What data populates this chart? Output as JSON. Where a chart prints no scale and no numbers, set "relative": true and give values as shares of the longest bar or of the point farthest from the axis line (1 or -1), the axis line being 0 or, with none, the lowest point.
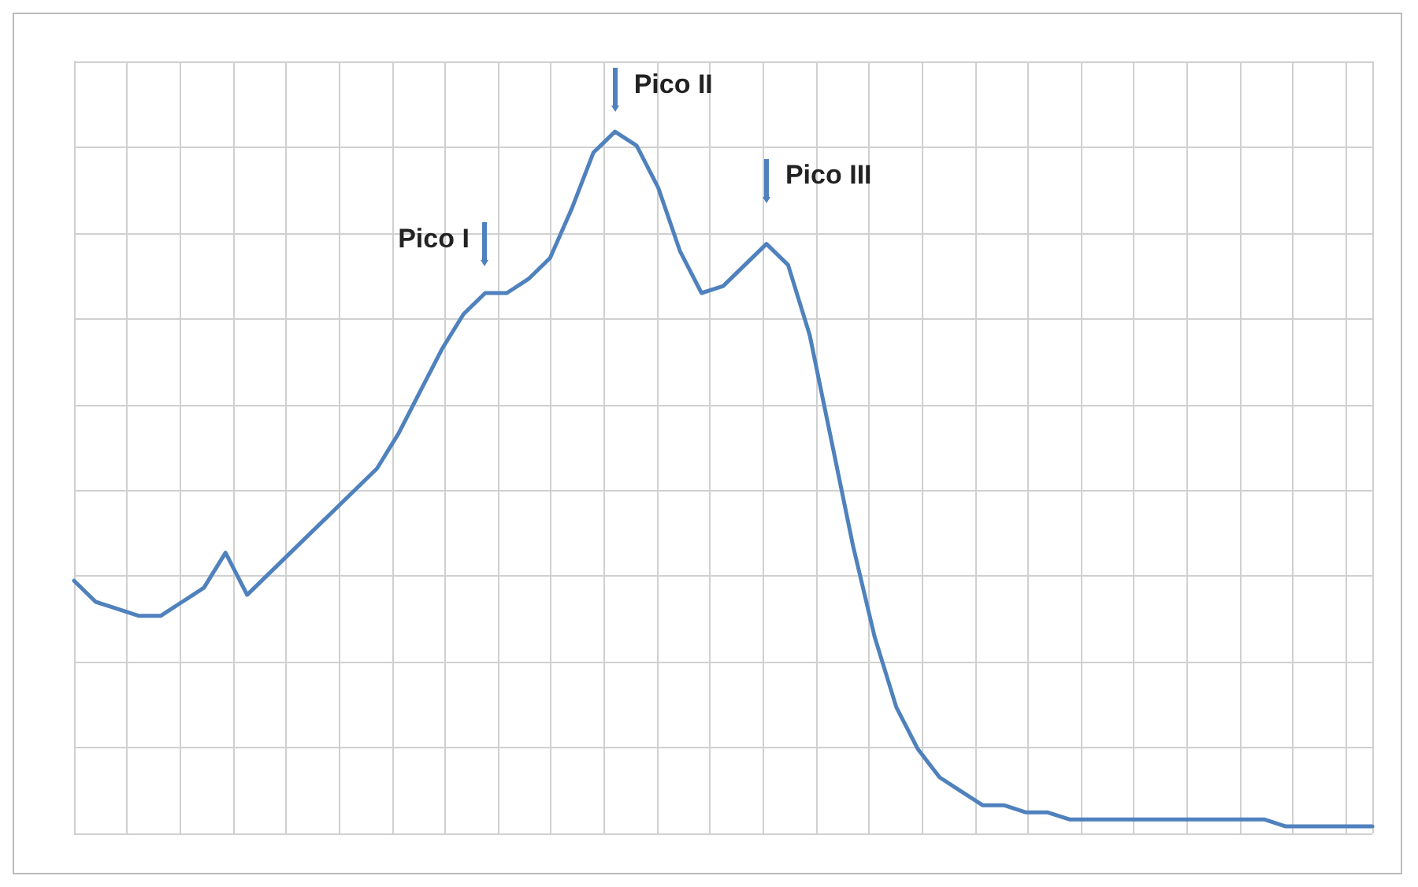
{
  "chart_data": {
    "type": "line",
    "relative": true,
    "grid": true,
    "marker": "none",
    "line_style": "solid",
    "categories": [
      null,
      null,
      null,
      null,
      null,
      null,
      null,
      null,
      null,
      null,
      null,
      null,
      null,
      null,
      null,
      null,
      null,
      null,
      null,
      null,
      null,
      null,
      null,
      null,
      null,
      null,
      null,
      null,
      null,
      null,
      null,
      null,
      null,
      null,
      null,
      null,
      null,
      null,
      null,
      null,
      null,
      null,
      null,
      null,
      null,
      null,
      null,
      null,
      null,
      null,
      null,
      null,
      null,
      null,
      null,
      null,
      null,
      null,
      null,
      null,
      null
    ],
    "series": [
      {
        "color": "#4f81bd",
        "values": [
          0.36,
          0.33,
          0.32,
          0.31,
          0.31,
          0.33,
          0.35,
          0.4,
          0.34,
          0.37,
          0.4,
          0.43,
          0.46,
          0.49,
          0.52,
          0.57,
          0.63,
          0.69,
          0.74,
          0.77,
          0.77,
          0.79,
          0.82,
          0.89,
          0.97,
          1,
          0.98,
          0.92,
          0.83,
          0.77,
          0.78,
          0.81,
          0.84,
          0.81,
          0.71,
          0.56,
          0.41,
          0.28,
          0.18,
          0.12,
          0.08,
          0.06,
          0.04,
          0.04,
          0.03,
          0.03,
          0.02,
          0.02,
          0.02,
          0.02,
          0.02,
          0.02,
          0.02,
          0.02,
          0.02,
          0.02,
          0.01,
          0.01,
          0.01,
          0.01,
          0.01
        ]
      }
    ],
    "annotations": [
      "Pico I",
      "Pico II",
      "Pico III"
    ]
  }
}
